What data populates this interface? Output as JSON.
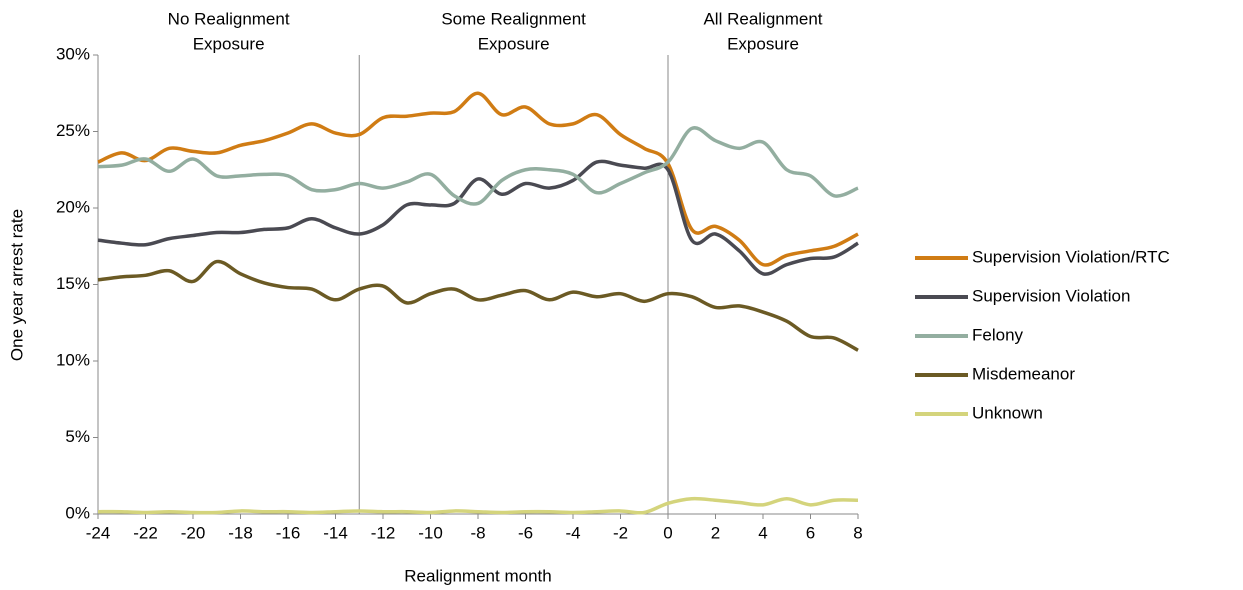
{
  "chart_data": {
    "type": "line",
    "xlabel": "Realignment month",
    "ylabel": "One year arrest rate",
    "x": [
      -24,
      -23,
      -22,
      -21,
      -20,
      -19,
      -18,
      -17,
      -16,
      -15,
      -14,
      -13,
      -12,
      -11,
      -10,
      -9,
      -8,
      -7,
      -6,
      -5,
      -4,
      -3,
      -2,
      -1,
      0,
      1,
      2,
      3,
      4,
      5,
      6,
      7,
      8
    ],
    "series": [
      {
        "name": "Supervision Violation/RTC",
        "color": "#d07c14",
        "values": [
          23,
          23.6,
          23.1,
          23.9,
          23.7,
          23.6,
          24.1,
          24.4,
          24.9,
          25.5,
          24.9,
          24.8,
          25.9,
          26.0,
          26.2,
          26.3,
          27.5,
          26.1,
          26.6,
          25.5,
          25.5,
          26.1,
          24.8,
          23.9,
          22.9,
          18.6,
          18.8,
          17.9,
          16.3,
          16.9,
          17.2,
          17.5,
          18.3
        ]
      },
      {
        "name": "Supervision Violation",
        "color": "#4a4a52",
        "values": [
          17.9,
          17.7,
          17.6,
          18.0,
          18.2,
          18.4,
          18.4,
          18.6,
          18.7,
          19.3,
          18.7,
          18.3,
          18.9,
          20.2,
          20.2,
          20.3,
          21.9,
          20.9,
          21.6,
          21.3,
          21.8,
          23.0,
          22.8,
          22.6,
          22.5,
          17.9,
          18.3,
          17.2,
          15.7,
          16.3,
          16.7,
          16.8,
          17.7
        ]
      },
      {
        "name": "Felony",
        "color": "#93aea0",
        "values": [
          22.7,
          22.8,
          23.2,
          22.4,
          23.2,
          22.1,
          22.1,
          22.2,
          22.1,
          21.2,
          21.2,
          21.6,
          21.3,
          21.7,
          22.2,
          20.8,
          20.3,
          21.8,
          22.5,
          22.5,
          22.2,
          21.0,
          21.6,
          22.3,
          23.0,
          25.2,
          24.4,
          23.9,
          24.3,
          22.5,
          22.1,
          20.8,
          21.3
        ]
      },
      {
        "name": "Misdemeanor",
        "color": "#6b5a24",
        "values": [
          15.3,
          15.5,
          15.6,
          15.9,
          15.2,
          16.5,
          15.7,
          15.1,
          14.8,
          14.7,
          14.0,
          14.7,
          14.9,
          13.8,
          14.4,
          14.7,
          14.0,
          14.3,
          14.6,
          14.0,
          14.5,
          14.2,
          14.4,
          13.9,
          14.4,
          14.2,
          13.5,
          13.6,
          13.2,
          12.6,
          11.6,
          11.5,
          10.7
        ]
      },
      {
        "name": "Unknown",
        "color": "#d4d47c",
        "values": [
          0.15,
          0.15,
          0.1,
          0.15,
          0.1,
          0.1,
          0.2,
          0.15,
          0.15,
          0.1,
          0.15,
          0.2,
          0.15,
          0.15,
          0.1,
          0.2,
          0.15,
          0.1,
          0.15,
          0.15,
          0.1,
          0.15,
          0.2,
          0.1,
          0.7,
          1.0,
          0.9,
          0.75,
          0.6,
          1.0,
          0.6,
          0.9,
          0.9
        ]
      }
    ],
    "xlim": [
      -24,
      8
    ],
    "xticks": [
      -24,
      -22,
      -20,
      -18,
      -16,
      -14,
      -12,
      -10,
      -8,
      -6,
      -4,
      -2,
      0,
      2,
      4,
      6,
      8
    ],
    "ylim": [
      0,
      30
    ],
    "yticks": [
      {
        "value": 0,
        "label": "0%"
      },
      {
        "value": 5,
        "label": "5%"
      },
      {
        "value": 10,
        "label": "10%"
      },
      {
        "value": 15,
        "label": "15%"
      },
      {
        "value": 20,
        "label": "20%"
      },
      {
        "value": 25,
        "label": "25%"
      },
      {
        "value": 30,
        "label": "30%"
      }
    ],
    "vlines": [
      -13,
      0
    ],
    "annotations": [
      {
        "x": -18.5,
        "lines": [
          "No Realignment",
          "Exposure"
        ]
      },
      {
        "x": -6.5,
        "lines": [
          "Some Realignment",
          "Exposure"
        ]
      },
      {
        "x": 4,
        "lines": [
          "All Realignment",
          "Exposure"
        ]
      }
    ],
    "legend": "right"
  }
}
